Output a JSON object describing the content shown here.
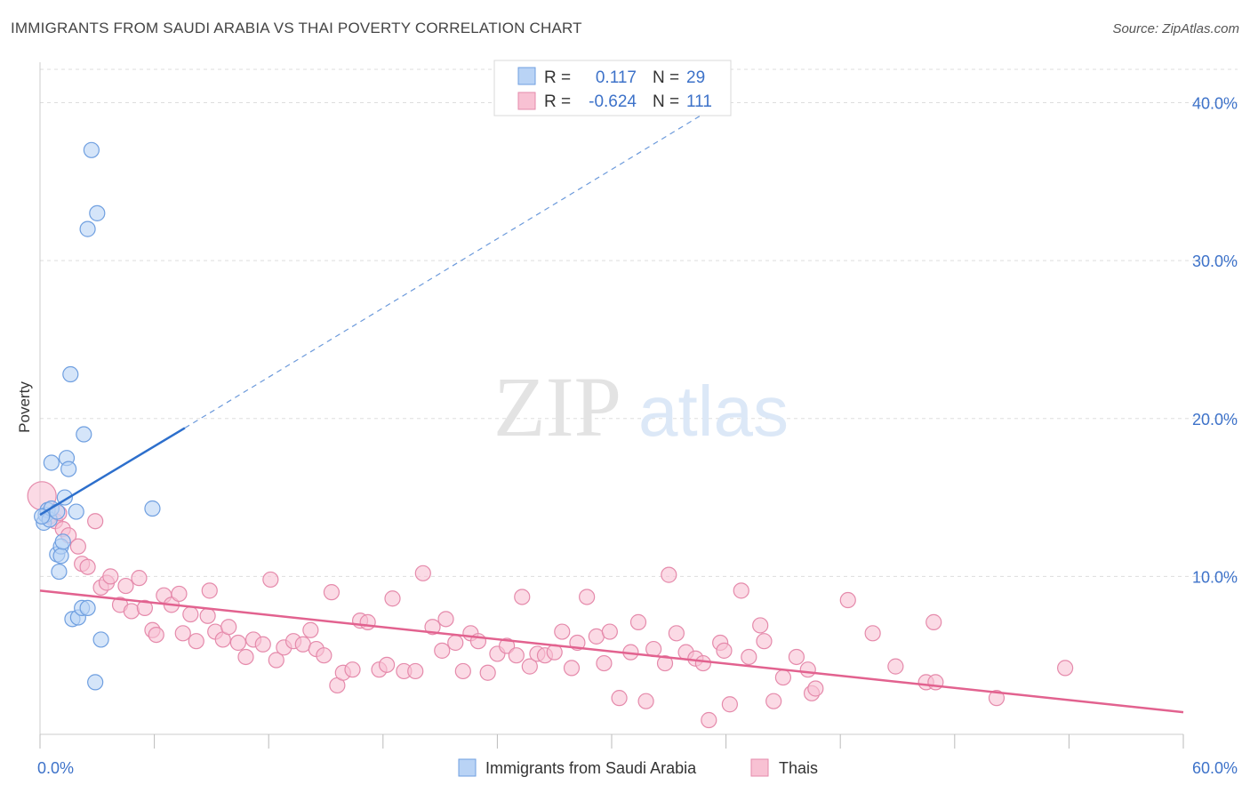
{
  "title": "IMMIGRANTS FROM SAUDI ARABIA VS THAI POVERTY CORRELATION CHART",
  "source": "Source: ZipAtlas.com",
  "watermark": {
    "zip": "ZIP",
    "atlas": "atlas"
  },
  "colors": {
    "blue_fill": "#b9d3f5",
    "blue_stroke": "#6f9fe0",
    "blue_line": "#2d6fcc",
    "pink_fill": "#f8c1d3",
    "pink_stroke": "#e58aab",
    "pink_line": "#e2628f",
    "grid": "#dddddd",
    "tick_text": "#3d72c9"
  },
  "legend": {
    "rows": [
      {
        "r_label": "R =",
        "r_value": "0.117",
        "n_label": "N =",
        "n_value": "29"
      },
      {
        "r_label": "R =",
        "r_value": "-0.624",
        "n_label": "N =",
        "n_value": "111"
      }
    ]
  },
  "bottom_legend": [
    "Immigrants from Saudi Arabia",
    "Thais"
  ],
  "chart_data": {
    "type": "scatter",
    "xlabel": "",
    "ylabel": "Poverty",
    "xlim": [
      0,
      60
    ],
    "ylim": [
      0,
      42
    ],
    "x_tick_labels": [
      "0.0%",
      "60.0%"
    ],
    "y_ticks": [
      10,
      20,
      30,
      40
    ],
    "y_tick_labels": [
      "10.0%",
      "20.0%",
      "30.0%",
      "40.0%"
    ],
    "grid": true,
    "series": [
      {
        "name": "Immigrants from Saudi Arabia",
        "color": "blue",
        "points": [
          [
            0.2,
            13.4
          ],
          [
            0.3,
            13.9
          ],
          [
            0.4,
            14.2
          ],
          [
            0.5,
            13.6
          ],
          [
            0.6,
            14.3
          ],
          [
            0.6,
            17.2
          ],
          [
            0.9,
            11.4
          ],
          [
            0.9,
            14.1
          ],
          [
            1.0,
            10.3
          ],
          [
            1.1,
            11.9
          ],
          [
            1.1,
            11.3
          ],
          [
            1.2,
            12.2
          ],
          [
            1.3,
            15.0
          ],
          [
            1.4,
            17.5
          ],
          [
            1.5,
            16.8
          ],
          [
            1.6,
            22.8
          ],
          [
            1.7,
            7.3
          ],
          [
            1.9,
            14.1
          ],
          [
            2.0,
            7.4
          ],
          [
            2.2,
            8.0
          ],
          [
            2.3,
            19.0
          ],
          [
            2.5,
            8.0
          ],
          [
            2.5,
            32.0
          ],
          [
            2.7,
            37.0
          ],
          [
            2.9,
            3.3
          ],
          [
            3.0,
            33.0
          ],
          [
            3.2,
            6.0
          ],
          [
            5.9,
            14.3
          ],
          [
            0.1,
            13.8
          ]
        ],
        "trend": {
          "x": [
            0,
            7.6
          ],
          "y": [
            13.9,
            19.4
          ],
          "dashed_to": [
            35.1,
            39.5
          ]
        }
      },
      {
        "name": "Thais",
        "color": "pink",
        "points": [
          [
            0.1,
            15.1
          ],
          [
            0.5,
            13.8
          ],
          [
            0.8,
            13.5
          ],
          [
            1.0,
            14.0
          ],
          [
            1.2,
            13.0
          ],
          [
            1.5,
            12.6
          ],
          [
            2.0,
            11.9
          ],
          [
            2.2,
            10.8
          ],
          [
            2.5,
            10.6
          ],
          [
            2.9,
            13.5
          ],
          [
            3.2,
            9.3
          ],
          [
            3.5,
            9.6
          ],
          [
            3.7,
            10.0
          ],
          [
            4.2,
            8.2
          ],
          [
            4.5,
            9.4
          ],
          [
            4.8,
            7.8
          ],
          [
            5.2,
            9.9
          ],
          [
            5.5,
            8.0
          ],
          [
            5.9,
            6.6
          ],
          [
            6.1,
            6.3
          ],
          [
            6.5,
            8.8
          ],
          [
            6.9,
            8.2
          ],
          [
            7.3,
            8.9
          ],
          [
            7.5,
            6.4
          ],
          [
            7.9,
            7.6
          ],
          [
            8.2,
            5.9
          ],
          [
            8.8,
            7.5
          ],
          [
            8.9,
            9.1
          ],
          [
            9.2,
            6.5
          ],
          [
            9.6,
            6.0
          ],
          [
            9.9,
            6.8
          ],
          [
            10.4,
            5.8
          ],
          [
            10.8,
            4.9
          ],
          [
            11.2,
            6.0
          ],
          [
            11.7,
            5.7
          ],
          [
            12.1,
            9.8
          ],
          [
            12.4,
            4.7
          ],
          [
            12.8,
            5.5
          ],
          [
            13.3,
            5.9
          ],
          [
            13.8,
            5.7
          ],
          [
            14.2,
            6.6
          ],
          [
            14.5,
            5.4
          ],
          [
            14.9,
            5.0
          ],
          [
            15.3,
            9.0
          ],
          [
            15.6,
            3.1
          ],
          [
            15.9,
            3.9
          ],
          [
            16.4,
            4.1
          ],
          [
            16.8,
            7.2
          ],
          [
            17.2,
            7.1
          ],
          [
            17.8,
            4.1
          ],
          [
            18.2,
            4.4
          ],
          [
            18.5,
            8.6
          ],
          [
            19.1,
            4.0
          ],
          [
            19.7,
            4.0
          ],
          [
            20.1,
            10.2
          ],
          [
            20.6,
            6.8
          ],
          [
            21.1,
            5.3
          ],
          [
            21.3,
            7.3
          ],
          [
            21.8,
            5.8
          ],
          [
            22.2,
            4.0
          ],
          [
            22.6,
            6.4
          ],
          [
            23.0,
            5.9
          ],
          [
            23.5,
            3.9
          ],
          [
            24.0,
            5.1
          ],
          [
            24.5,
            5.6
          ],
          [
            25.0,
            5.0
          ],
          [
            25.3,
            8.7
          ],
          [
            25.7,
            4.3
          ],
          [
            26.1,
            5.1
          ],
          [
            26.5,
            5.0
          ],
          [
            27.0,
            5.2
          ],
          [
            27.4,
            6.5
          ],
          [
            27.9,
            4.2
          ],
          [
            28.2,
            5.8
          ],
          [
            28.7,
            8.7
          ],
          [
            29.2,
            6.2
          ],
          [
            29.6,
            4.5
          ],
          [
            29.9,
            6.5
          ],
          [
            30.4,
            2.3
          ],
          [
            31.0,
            5.2
          ],
          [
            31.4,
            7.1
          ],
          [
            31.8,
            2.1
          ],
          [
            32.2,
            5.4
          ],
          [
            32.8,
            4.5
          ],
          [
            33.0,
            10.1
          ],
          [
            33.4,
            6.4
          ],
          [
            33.9,
            5.2
          ],
          [
            34.4,
            4.8
          ],
          [
            34.8,
            4.5
          ],
          [
            35.1,
            0.9
          ],
          [
            35.7,
            5.8
          ],
          [
            35.9,
            5.3
          ],
          [
            36.2,
            1.9
          ],
          [
            36.8,
            9.1
          ],
          [
            37.2,
            4.9
          ],
          [
            37.8,
            6.9
          ],
          [
            38.0,
            5.9
          ],
          [
            38.5,
            2.1
          ],
          [
            39.0,
            3.6
          ],
          [
            39.7,
            4.9
          ],
          [
            40.3,
            4.1
          ],
          [
            40.5,
            2.6
          ],
          [
            40.7,
            2.9
          ],
          [
            42.4,
            8.5
          ],
          [
            43.7,
            6.4
          ],
          [
            44.9,
            4.3
          ],
          [
            46.5,
            3.3
          ],
          [
            47.0,
            3.3
          ],
          [
            46.9,
            7.1
          ],
          [
            50.2,
            2.3
          ],
          [
            53.8,
            4.2
          ]
        ],
        "trend": {
          "x": [
            0,
            60
          ],
          "y": [
            9.1,
            1.4
          ]
        }
      }
    ]
  }
}
